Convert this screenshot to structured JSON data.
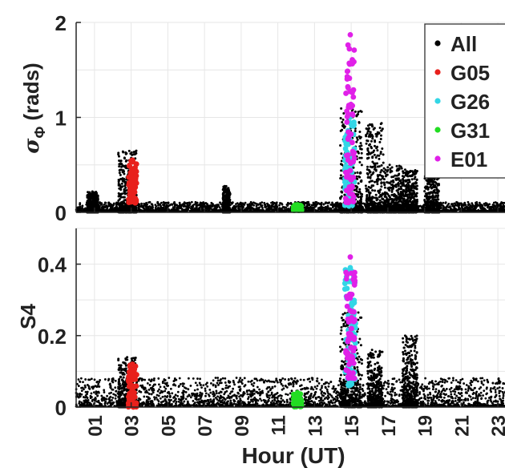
{
  "colors": {
    "All": "#000000",
    "G05": "#e8201c",
    "G26": "#33d6e6",
    "G31": "#22dd22",
    "E01": "#e020e8",
    "grid": "#e6e6e6",
    "axis": "#262626"
  },
  "chart_data": [
    {
      "type": "scatter",
      "panel": "top",
      "ylabel_symbol": "σ",
      "ylabel_subscript": "Φ",
      "ylabel_unit": "(rads)",
      "xlim": [
        0,
        24
      ],
      "ylim": [
        0,
        2
      ],
      "yticks": [
        0,
        1,
        2
      ],
      "ytick_labels": [
        "0",
        "1",
        "2"
      ],
      "grid": true,
      "legend": {
        "placement": "top-right",
        "entries": [
          "All",
          "G05",
          "G26",
          "G31",
          "E01"
        ]
      },
      "series": [
        {
          "name": "All",
          "description_of_background": "dense scatter 0-24 h, baseline ~0.03-0.1 rads",
          "bursts": [
            {
              "center_hour": 15.0,
              "width_hours": 0.6,
              "max": 1.1
            },
            {
              "center_hour": 16.3,
              "width_hours": 0.5,
              "max": 0.95
            },
            {
              "center_hour": 17.3,
              "width_hours": 0.5,
              "max": 0.5
            },
            {
              "center_hour": 18.2,
              "width_hours": 0.4,
              "max": 0.45
            },
            {
              "center_hour": 2.8,
              "width_hours": 0.5,
              "max": 0.65
            },
            {
              "center_hour": 0.9,
              "width_hours": 0.3,
              "max": 0.22
            },
            {
              "center_hour": 8.2,
              "width_hours": 0.2,
              "max": 0.28
            },
            {
              "center_hour": 19.4,
              "width_hours": 0.4,
              "max": 0.42
            }
          ]
        },
        {
          "name": "G05",
          "hours": [
            2.85,
            3.3
          ],
          "range": [
            0.1,
            0.55
          ]
        },
        {
          "name": "G26",
          "hours": [
            14.65,
            15.2
          ],
          "range": [
            0.05,
            1.0
          ]
        },
        {
          "name": "G31",
          "hours": [
            11.85,
            12.3
          ],
          "range": [
            0.02,
            0.08
          ]
        },
        {
          "name": "E01",
          "hours": [
            14.7,
            15.2
          ],
          "range": [
            0.1,
            1.87
          ]
        }
      ]
    },
    {
      "type": "scatter",
      "panel": "bottom",
      "ylabel": "S4",
      "xlabel": "Hour (UT)",
      "xlim": [
        0,
        24
      ],
      "xticks": [
        1,
        3,
        5,
        7,
        9,
        11,
        13,
        15,
        17,
        19,
        21,
        23
      ],
      "xtick_labels": [
        "01",
        "03",
        "05",
        "07",
        "09",
        "11",
        "13",
        "15",
        "17",
        "19",
        "21",
        "23"
      ],
      "ylim": [
        0,
        0.5
      ],
      "yticks": [
        0,
        0.2,
        0.4
      ],
      "ytick_labels": [
        "0",
        "0.2",
        "0.4"
      ],
      "grid": true,
      "series": [
        {
          "name": "All",
          "description_of_background": "dense scatter 0-24 h, baseline ~0.02-0.08",
          "bursts": [
            {
              "center_hour": 15.0,
              "width_hours": 0.6,
              "max": 0.27
            },
            {
              "center_hour": 16.3,
              "width_hours": 0.4,
              "max": 0.16
            },
            {
              "center_hour": 18.2,
              "width_hours": 0.4,
              "max": 0.2
            },
            {
              "center_hour": 2.8,
              "width_hours": 0.5,
              "max": 0.14
            }
          ]
        },
        {
          "name": "G05",
          "hours": [
            2.85,
            3.3
          ],
          "range": [
            0.0,
            0.12
          ]
        },
        {
          "name": "G26",
          "hours": [
            14.65,
            15.25
          ],
          "range": [
            0.06,
            0.39
          ]
        },
        {
          "name": "G31",
          "hours": [
            11.85,
            12.3
          ],
          "range": [
            0.0,
            0.04
          ]
        },
        {
          "name": "E01",
          "hours": [
            14.7,
            15.2
          ],
          "range": [
            0.08,
            0.42
          ]
        }
      ]
    }
  ]
}
